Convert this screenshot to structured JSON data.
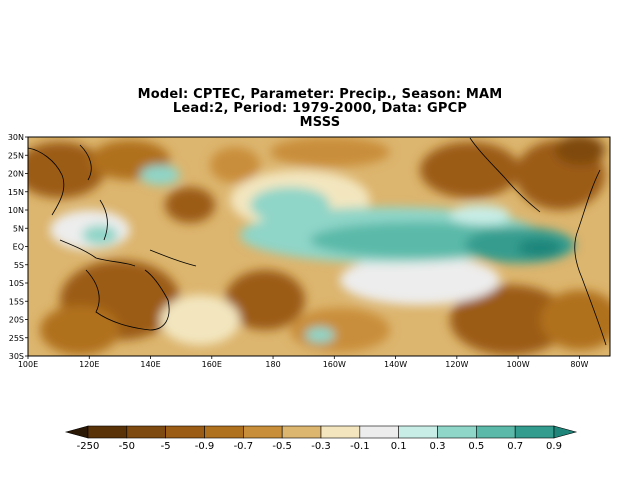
{
  "title": {
    "line1": "Model: CPTEC, Parameter: Precip., Season: MAM",
    "line2": "Lead:2, Period: 1979-2000, Data: GPCP",
    "line3": "MSSS"
  },
  "map": {
    "lat_labels": [
      "30N",
      "25N",
      "20N",
      "15N",
      "10N",
      "5N",
      "EQ",
      "5S",
      "10S",
      "15S",
      "20S",
      "25S",
      "30S"
    ],
    "lon_labels": [
      "100E",
      "120E",
      "140E",
      "160E",
      "180",
      "160W",
      "140W",
      "120W",
      "100W",
      "80W"
    ],
    "lat_range": [
      -30,
      30
    ],
    "lon_range": [
      100,
      290
    ]
  },
  "colorbar": {
    "labels": [
      "-250",
      "-50",
      "-5",
      "-0.9",
      "-0.7",
      "-0.5",
      "-0.3",
      "-0.1",
      "0.1",
      "0.3",
      "0.5",
      "0.7",
      "0.9"
    ],
    "colors": [
      "#2a1704",
      "#5a3208",
      "#7f4a10",
      "#9b5c16",
      "#b0711f",
      "#c98e3a",
      "#dcb56e",
      "#f3e6bf",
      "#ededed",
      "#c7ede6",
      "#8fd5c8",
      "#5ab9a9",
      "#349c8e",
      "#1f857a"
    ]
  }
}
